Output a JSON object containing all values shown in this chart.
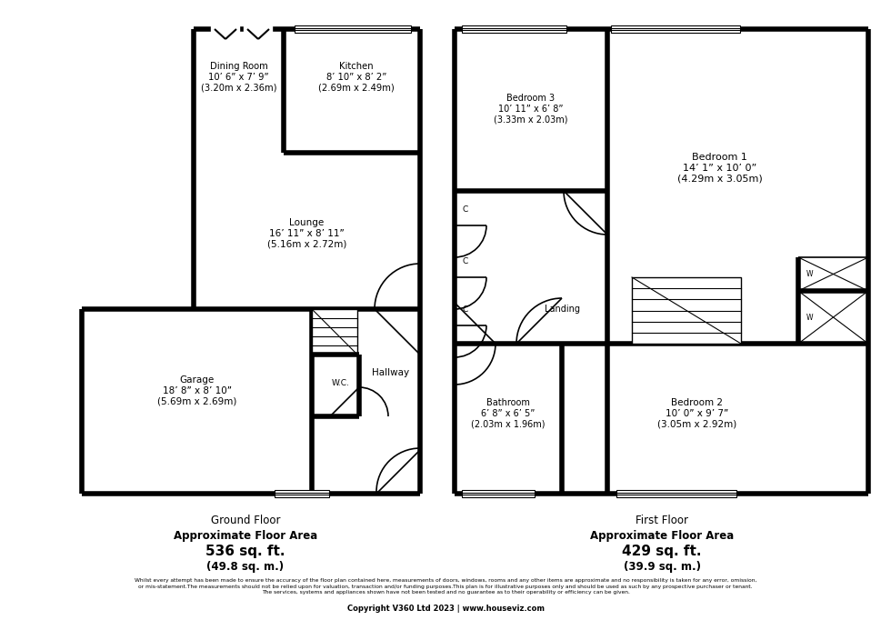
{
  "bg_color": "#ffffff",
  "wall_color": "#000000",
  "wall_lw": 4.0,
  "thin_lw": 1.2,
  "text_color": "#000000",
  "ground_floor_label": [
    "Ground Floor",
    "Approximate Floor Area",
    "536 sq. ft.",
    "(49.8 sq. m.)"
  ],
  "first_floor_label": [
    "First Floor",
    "Approximate Floor Area",
    "429 sq. ft.",
    "(39.9 sq. m.)"
  ],
  "disclaimer": "Whilst every attempt has been made to ensure the accuracy of the floor plan contained here, measurements of doors, windows, rooms and any other items are approximate and no responsibility is taken for any error, omission,\nor mis-statement.The measurements should not be relied upon for valuation, transaction and/or funding purposes.This plan is for illustrative purposes only and should be used as such by any prospective purchaser or tenant.\nThe services, systems and appliances shown have not been tested and no guarantee as to their operability or efficiency can be given.",
  "copyright": "Copyright V360 Ltd 2023 | www.houseviz.com",
  "rooms": {
    "dining_room": "Dining Room\n10’ 6” x 7’ 9”\n(3.20m x 2.36m)",
    "kitchen": "Kitchen\n8’ 10” x 8’ 2”\n(2.69m x 2.49m)",
    "lounge": "Lounge\n16’ 11” x 8’ 11”\n(5.16m x 2.72m)",
    "garage": "Garage\n18’ 8” x 8’ 10”\n(5.69m x 2.69m)",
    "hallway": "Hallway",
    "wc": "W.C.",
    "bedroom1": "Bedroom 1\n14’ 1” x 10’ 0”\n(4.29m x 3.05m)",
    "bedroom2": "Bedroom 2\n10’ 0” x 9’ 7”\n(3.05m x 2.92m)",
    "bedroom3": "Bedroom 3\n10’ 11” x 6’ 8”\n(3.33m x 2.03m)",
    "bathroom": "Bathroom\n6’ 8” x 6’ 5”\n(2.03m x 1.96m)",
    "landing": "Landing"
  }
}
